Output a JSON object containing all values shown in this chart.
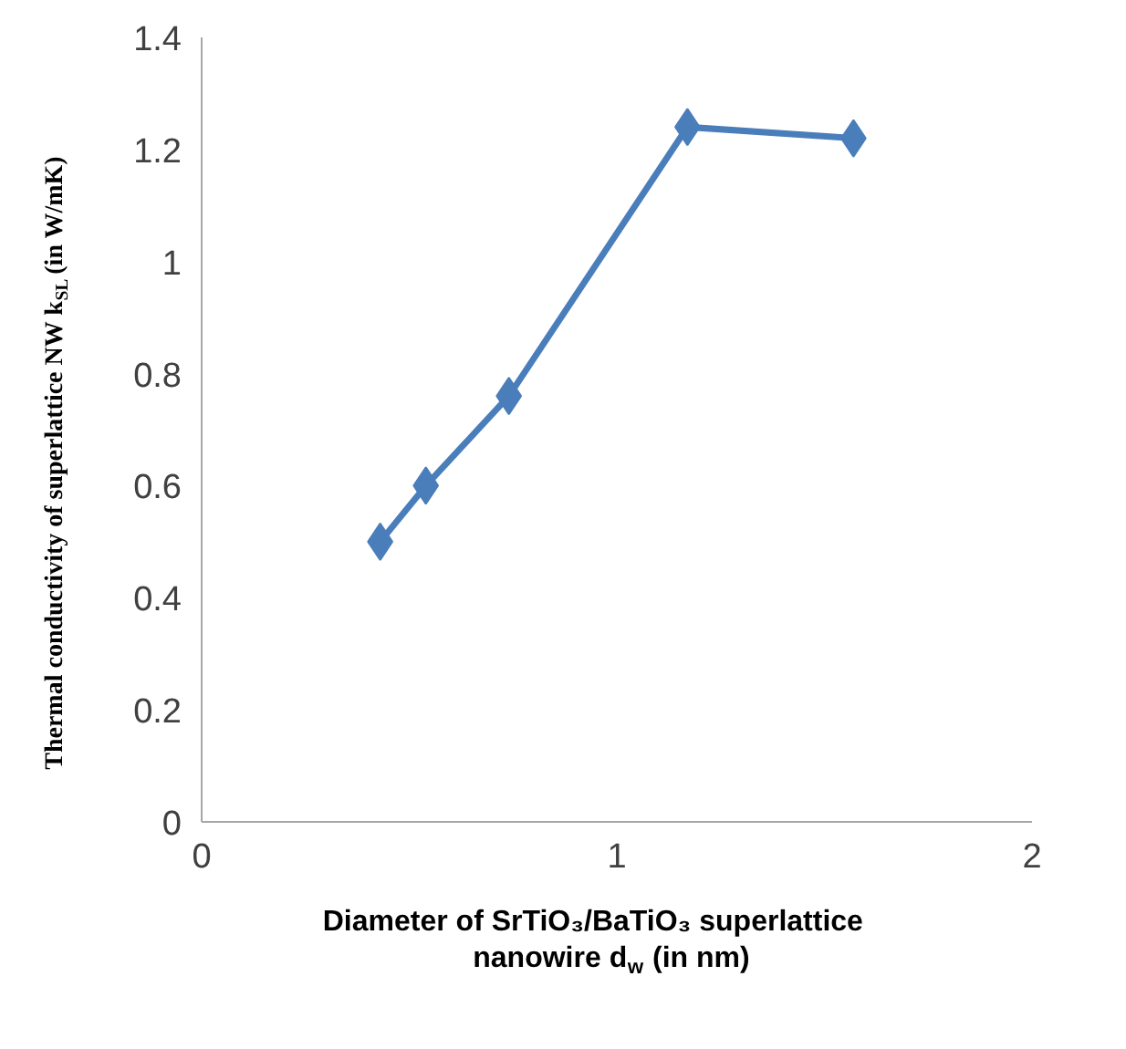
{
  "chart_data": {
    "type": "line",
    "xlabel": "Diameter of SrTiO₃/BaTiO₃ superlattice nanowire d$_{w}$ (in nm)",
    "ylabel": "Thermal conductivity of superlattice NW k$_{SL}$ (in W/mK)",
    "x": [
      0.43,
      0.54,
      0.74,
      1.17,
      1.57
    ],
    "series": [
      {
        "color": "#4a7ebb",
        "values": [
          0.5,
          0.6,
          0.76,
          1.24,
          1.22
        ]
      }
    ],
    "xlim": [
      0,
      2
    ],
    "xticks": [
      0,
      1,
      2
    ],
    "ylim": [
      0,
      1.4
    ],
    "yticks": [
      0,
      0.2,
      0.4,
      0.6,
      0.8,
      1,
      1.2,
      1.4
    ],
    "grid": false,
    "marker": "diamond",
    "line_style": "solid"
  }
}
